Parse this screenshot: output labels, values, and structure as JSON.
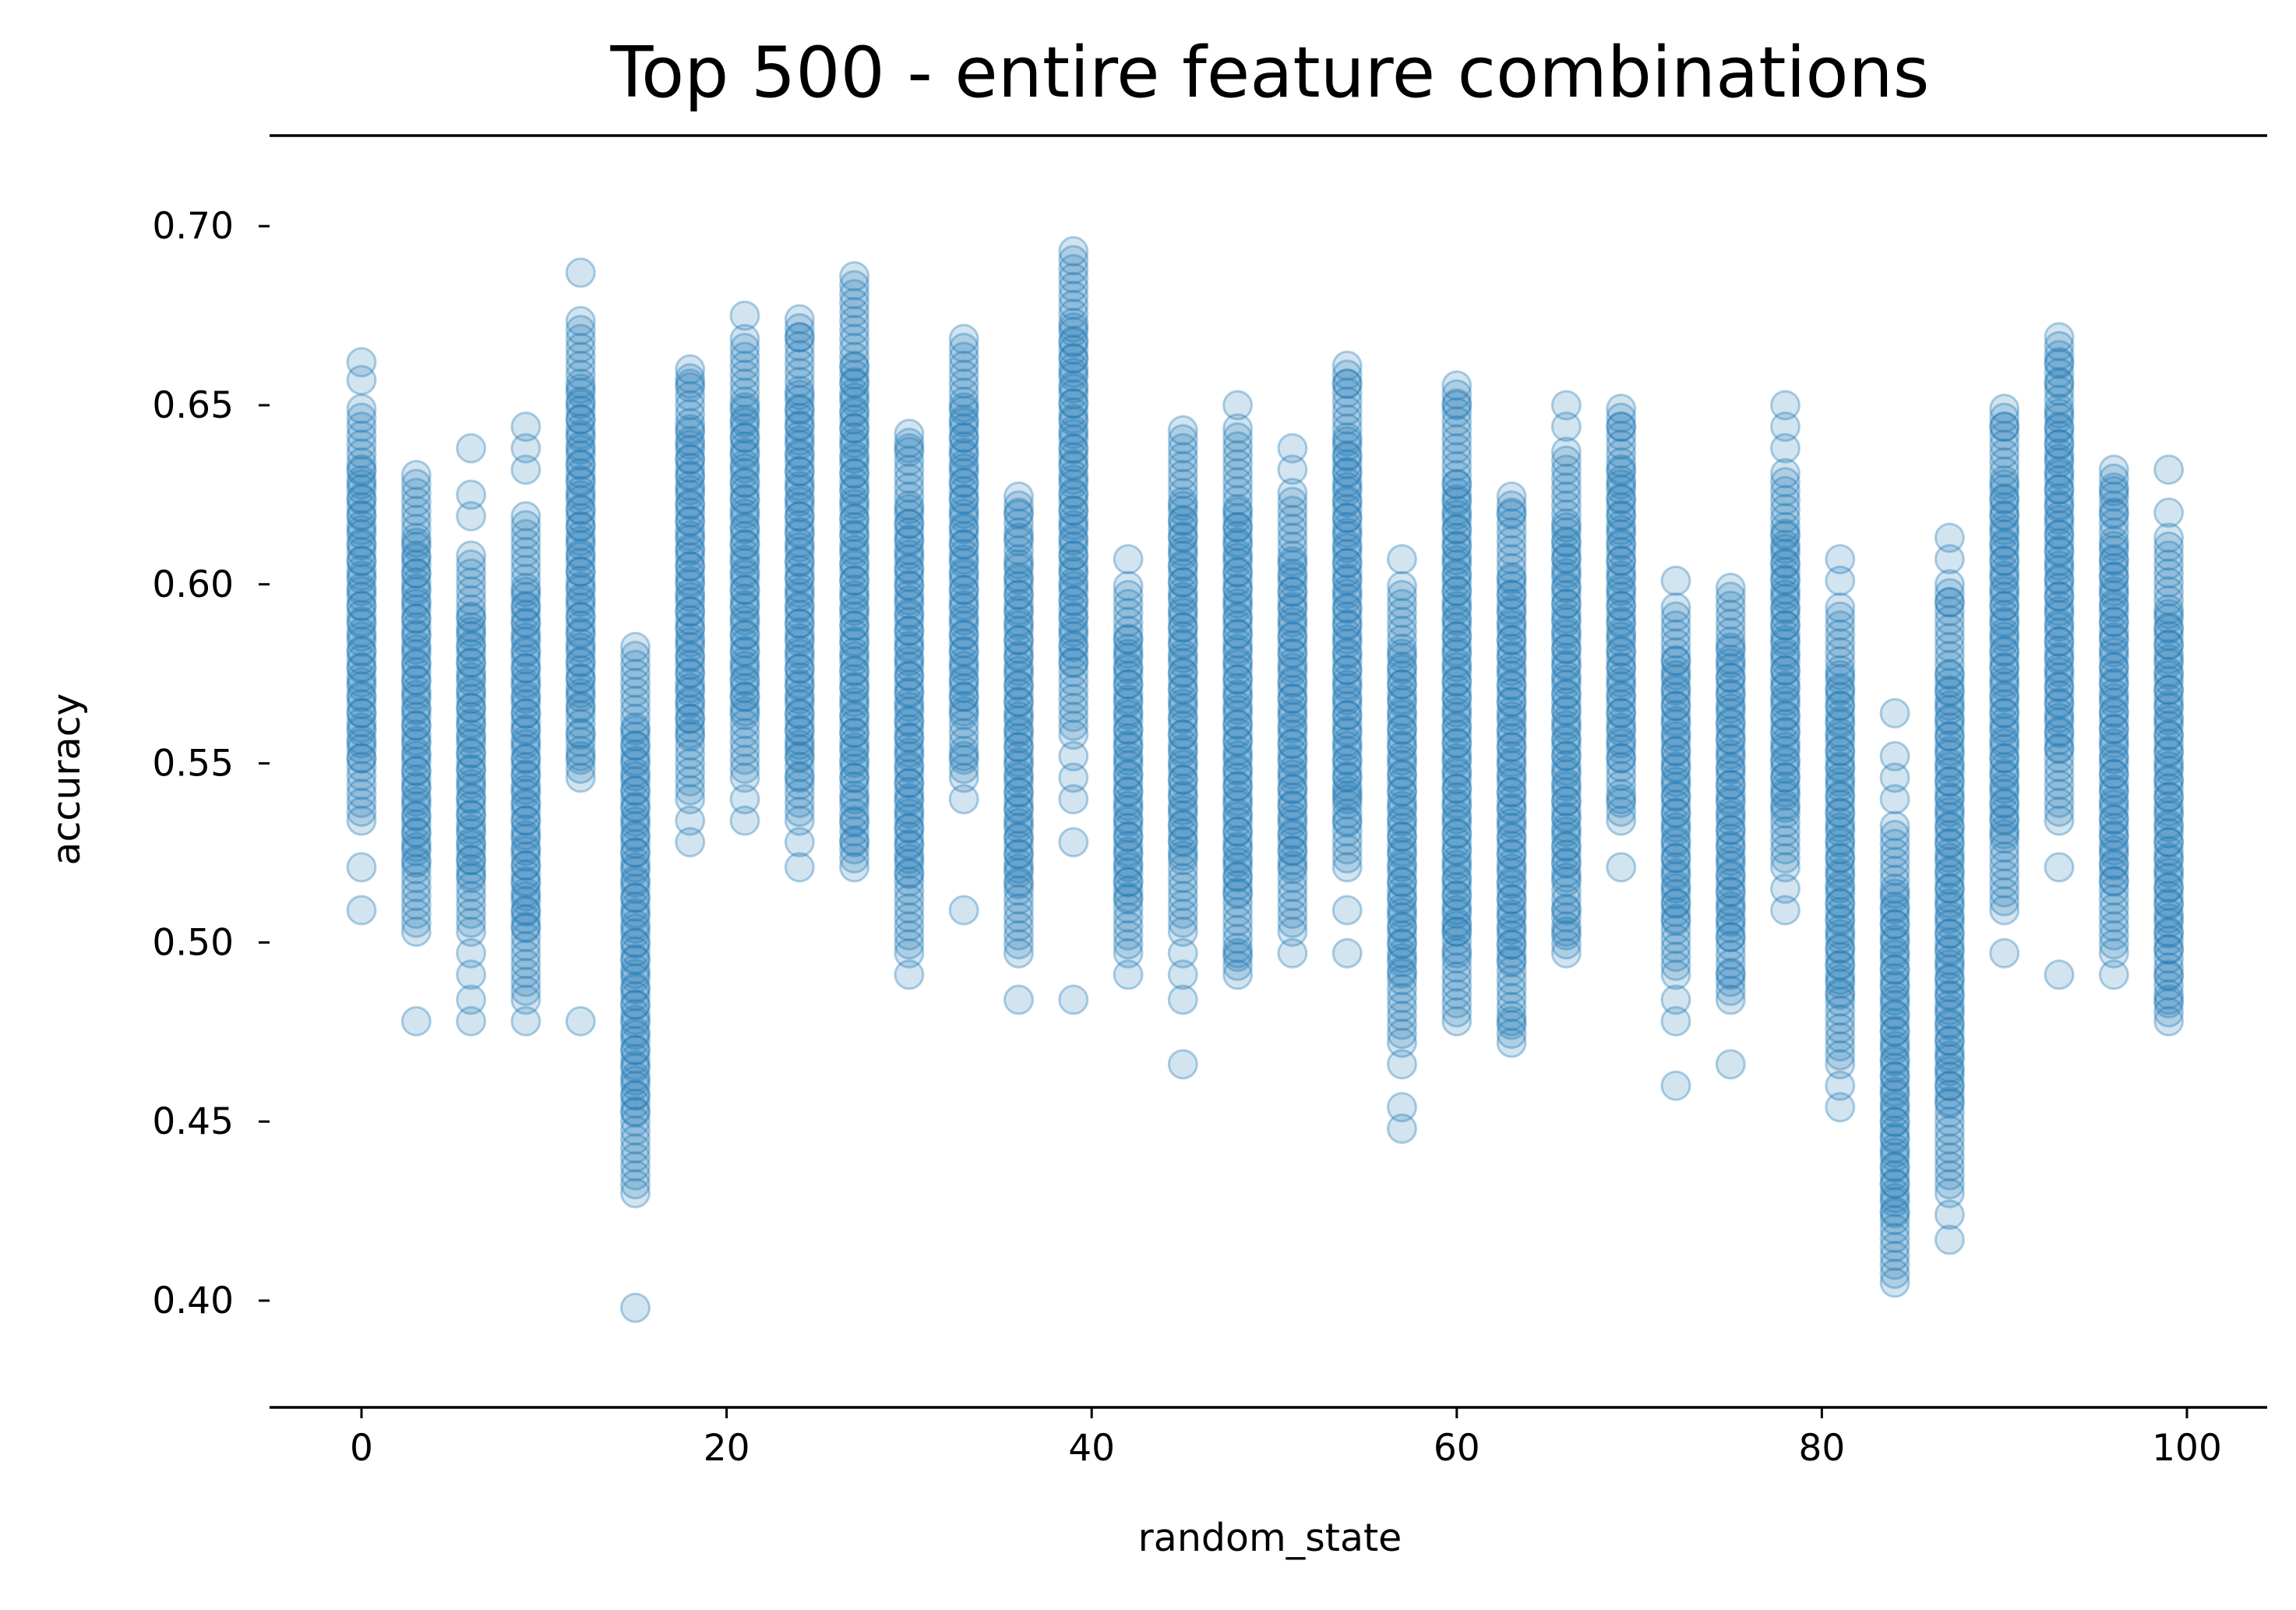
{
  "chart_data": {
    "type": "scatter",
    "title": "Top 500 - entire feature combinations",
    "xlabel": "random_state",
    "ylabel": "accuracy",
    "xlim": [
      -5,
      104
    ],
    "ylim": [
      0.37,
      0.72
    ],
    "xticks": [
      0,
      20,
      40,
      60,
      80,
      100
    ],
    "xtick_labels": [
      "0",
      "20",
      "40",
      "60",
      "80",
      "100"
    ],
    "yticks": [
      0.4,
      0.45,
      0.5,
      0.55,
      0.6,
      0.65,
      0.7
    ],
    "ytick_labels": [
      "0.40",
      "0.45",
      "0.50",
      "0.55",
      "0.60",
      "0.65",
      "0.70"
    ],
    "grid": false,
    "legend": "none",
    "marker": "circle",
    "alpha": 0.2,
    "color": "#1f77b4",
    "top_spine_visible": true,
    "right_spine_visible": false,
    "left_spine_visible": false,
    "columns": [
      {
        "x": 0,
        "core": [
          0.534,
          0.65
        ],
        "outliers": [
          0.662,
          0.657,
          0.521,
          0.509
        ]
      },
      {
        "x": 3,
        "core": [
          0.503,
          0.632
        ],
        "outliers": [
          0.478
        ]
      },
      {
        "x": 6,
        "core": [
          0.503,
          0.608
        ],
        "outliers": [
          0.638,
          0.619,
          0.625,
          0.497,
          0.491,
          0.484,
          0.478
        ]
      },
      {
        "x": 9,
        "core": [
          0.484,
          0.62
        ],
        "outliers": [
          0.644,
          0.638,
          0.632,
          0.478
        ]
      },
      {
        "x": 12,
        "core": [
          0.546,
          0.675
        ],
        "outliers": [
          0.687,
          0.558,
          0.552,
          0.478
        ]
      },
      {
        "x": 15,
        "core": [
          0.43,
          0.583
        ],
        "outliers": [
          0.398
        ]
      },
      {
        "x": 18,
        "core": [
          0.54,
          0.662
        ],
        "outliers": [
          0.656,
          0.534,
          0.528
        ]
      },
      {
        "x": 21,
        "core": [
          0.546,
          0.669
        ],
        "outliers": [
          0.675,
          0.54,
          0.534
        ]
      },
      {
        "x": 24,
        "core": [
          0.534,
          0.675
        ],
        "outliers": [
          0.669,
          0.552,
          0.546,
          0.528,
          0.521
        ]
      },
      {
        "x": 27,
        "core": [
          0.521,
          0.687
        ],
        "outliers": [
          0.528,
          0.534,
          0.54
        ]
      },
      {
        "x": 30,
        "core": [
          0.497,
          0.644
        ],
        "outliers": [
          0.638,
          0.491
        ]
      },
      {
        "x": 33,
        "core": [
          0.546,
          0.669
        ],
        "outliers": [
          0.552,
          0.54,
          0.509
        ]
      },
      {
        "x": 36,
        "core": [
          0.497,
          0.626
        ],
        "outliers": [
          0.613,
          0.62,
          0.484
        ]
      },
      {
        "x": 39,
        "core": [
          0.558,
          0.693
        ],
        "outliers": [
          0.552,
          0.546,
          0.54,
          0.528,
          0.484
        ]
      },
      {
        "x": 42,
        "core": [
          0.497,
          0.601
        ],
        "outliers": [
          0.607,
          0.491
        ]
      },
      {
        "x": 45,
        "core": [
          0.503,
          0.644
        ],
        "outliers": [
          0.497,
          0.491,
          0.484,
          0.466
        ]
      },
      {
        "x": 48,
        "core": [
          0.491,
          0.644
        ],
        "outliers": [
          0.65,
          0.497
        ]
      },
      {
        "x": 51,
        "core": [
          0.503,
          0.626
        ],
        "outliers": [
          0.638,
          0.632,
          0.497
        ]
      },
      {
        "x": 54,
        "core": [
          0.521,
          0.662
        ],
        "outliers": [
          0.656,
          0.54,
          0.534,
          0.509,
          0.497
        ]
      },
      {
        "x": 57,
        "core": [
          0.472,
          0.601
        ],
        "outliers": [
          0.607,
          0.466,
          0.454,
          0.448
        ]
      },
      {
        "x": 60,
        "core": [
          0.478,
          0.656
        ],
        "outliers": [
          0.65,
          0.503,
          0.497
        ]
      },
      {
        "x": 63,
        "core": [
          0.472,
          0.626
        ],
        "outliers": [
          0.62,
          0.478
        ]
      },
      {
        "x": 66,
        "core": [
          0.497,
          0.638
        ],
        "outliers": [
          0.65,
          0.644,
          0.509,
          0.503
        ]
      },
      {
        "x": 69,
        "core": [
          0.534,
          0.65
        ],
        "outliers": [
          0.644,
          0.54,
          0.521
        ]
      },
      {
        "x": 72,
        "core": [
          0.491,
          0.595
        ],
        "outliers": [
          0.601,
          0.484,
          0.478,
          0.46
        ]
      },
      {
        "x": 75,
        "core": [
          0.484,
          0.601
        ],
        "outliers": [
          0.491,
          0.466
        ]
      },
      {
        "x": 78,
        "core": [
          0.521,
          0.632
        ],
        "outliers": [
          0.65,
          0.644,
          0.638,
          0.515,
          0.509
        ]
      },
      {
        "x": 81,
        "core": [
          0.466,
          0.595
        ],
        "outliers": [
          0.607,
          0.601,
          0.46,
          0.454
        ]
      },
      {
        "x": 84,
        "core": [
          0.405,
          0.534
        ],
        "outliers": [
          0.564,
          0.552,
          0.546,
          0.54
        ]
      },
      {
        "x": 87,
        "core": [
          0.43,
          0.601
        ],
        "outliers": [
          0.613,
          0.607,
          0.595,
          0.424,
          0.417
        ]
      },
      {
        "x": 90,
        "core": [
          0.509,
          0.65
        ],
        "outliers": [
          0.644,
          0.497
        ]
      },
      {
        "x": 93,
        "core": [
          0.534,
          0.669
        ],
        "outliers": [
          0.662,
          0.656,
          0.521,
          0.491
        ]
      },
      {
        "x": 96,
        "core": [
          0.497,
          0.632
        ],
        "outliers": [
          0.626,
          0.62,
          0.491
        ]
      },
      {
        "x": 99,
        "core": [
          0.478,
          0.613
        ],
        "outliers": [
          0.632,
          0.62,
          0.491,
          0.484
        ]
      }
    ]
  }
}
